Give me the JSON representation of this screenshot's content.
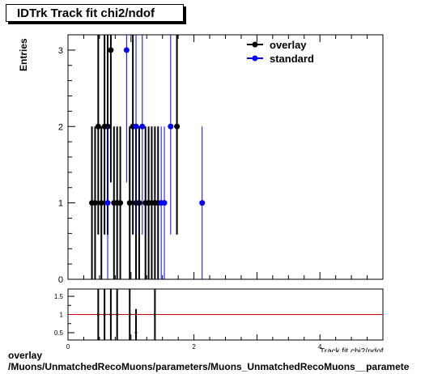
{
  "title": "IDTrk Track fit chi2/ndof",
  "ylabel": "Entries",
  "footer": {
    "line1": "overlay",
    "line2": "/Muons/UnmatchedRecoMuons/parameters/Muons_UnmatchedRecoMuons__paramete"
  },
  "xlabel_partial": "Track fit chi2/ndof",
  "chart_data": [
    {
      "type": "scatter",
      "ylabel": "Entries",
      "xlim": [
        0,
        5
      ],
      "ylim": [
        0,
        3.2
      ],
      "yticks": [
        0,
        1,
        2,
        3
      ],
      "legend": "top-right",
      "series": [
        {
          "name": "overlay",
          "color": "#000000",
          "points": [
            {
              "x": 0.38,
              "y": 1
            },
            {
              "x": 0.43,
              "y": 1
            },
            {
              "x": 0.48,
              "y": 2
            },
            {
              "x": 0.53,
              "y": 1
            },
            {
              "x": 0.58,
              "y": 2
            },
            {
              "x": 0.63,
              "y": 2
            },
            {
              "x": 0.68,
              "y": 3
            },
            {
              "x": 0.73,
              "y": 1
            },
            {
              "x": 0.78,
              "y": 1
            },
            {
              "x": 0.83,
              "y": 1
            },
            {
              "x": 0.98,
              "y": 1
            },
            {
              "x": 1.03,
              "y": 2
            },
            {
              "x": 1.08,
              "y": 1
            },
            {
              "x": 1.13,
              "y": 1
            },
            {
              "x": 1.23,
              "y": 1
            },
            {
              "x": 1.28,
              "y": 1
            },
            {
              "x": 1.33,
              "y": 1
            },
            {
              "x": 1.38,
              "y": 1
            },
            {
              "x": 1.43,
              "y": 1
            },
            {
              "x": 1.73,
              "y": 2
            }
          ]
        },
        {
          "name": "standard",
          "color": "#0000ff",
          "points": [
            {
              "x": 0.63,
              "y": 1
            },
            {
              "x": 0.93,
              "y": 3
            },
            {
              "x": 1.08,
              "y": 2
            },
            {
              "x": 1.18,
              "y": 2
            },
            {
              "x": 1.48,
              "y": 1
            },
            {
              "x": 1.53,
              "y": 1
            },
            {
              "x": 1.63,
              "y": 2
            },
            {
              "x": 2.13,
              "y": 1
            }
          ]
        }
      ]
    },
    {
      "type": "scatter",
      "title": "",
      "xlim": [
        0,
        5
      ],
      "ylim": [
        0.3,
        1.7
      ],
      "xticks": [
        0,
        2,
        4
      ],
      "yticks": [
        0.5,
        1,
        1.5
      ],
      "reference_line": {
        "y": 1,
        "color": "#cc0000"
      },
      "points": [
        {
          "x": 0.48,
          "y": 1
        },
        {
          "x": 0.58,
          "y": 1
        },
        {
          "x": 0.68,
          "y": 1
        },
        {
          "x": 0.78,
          "y": 1
        },
        {
          "x": 0.98,
          "y": 1
        },
        {
          "x": 1.08,
          "y": 0.5
        },
        {
          "x": 1.38,
          "y": 1
        }
      ]
    }
  ]
}
